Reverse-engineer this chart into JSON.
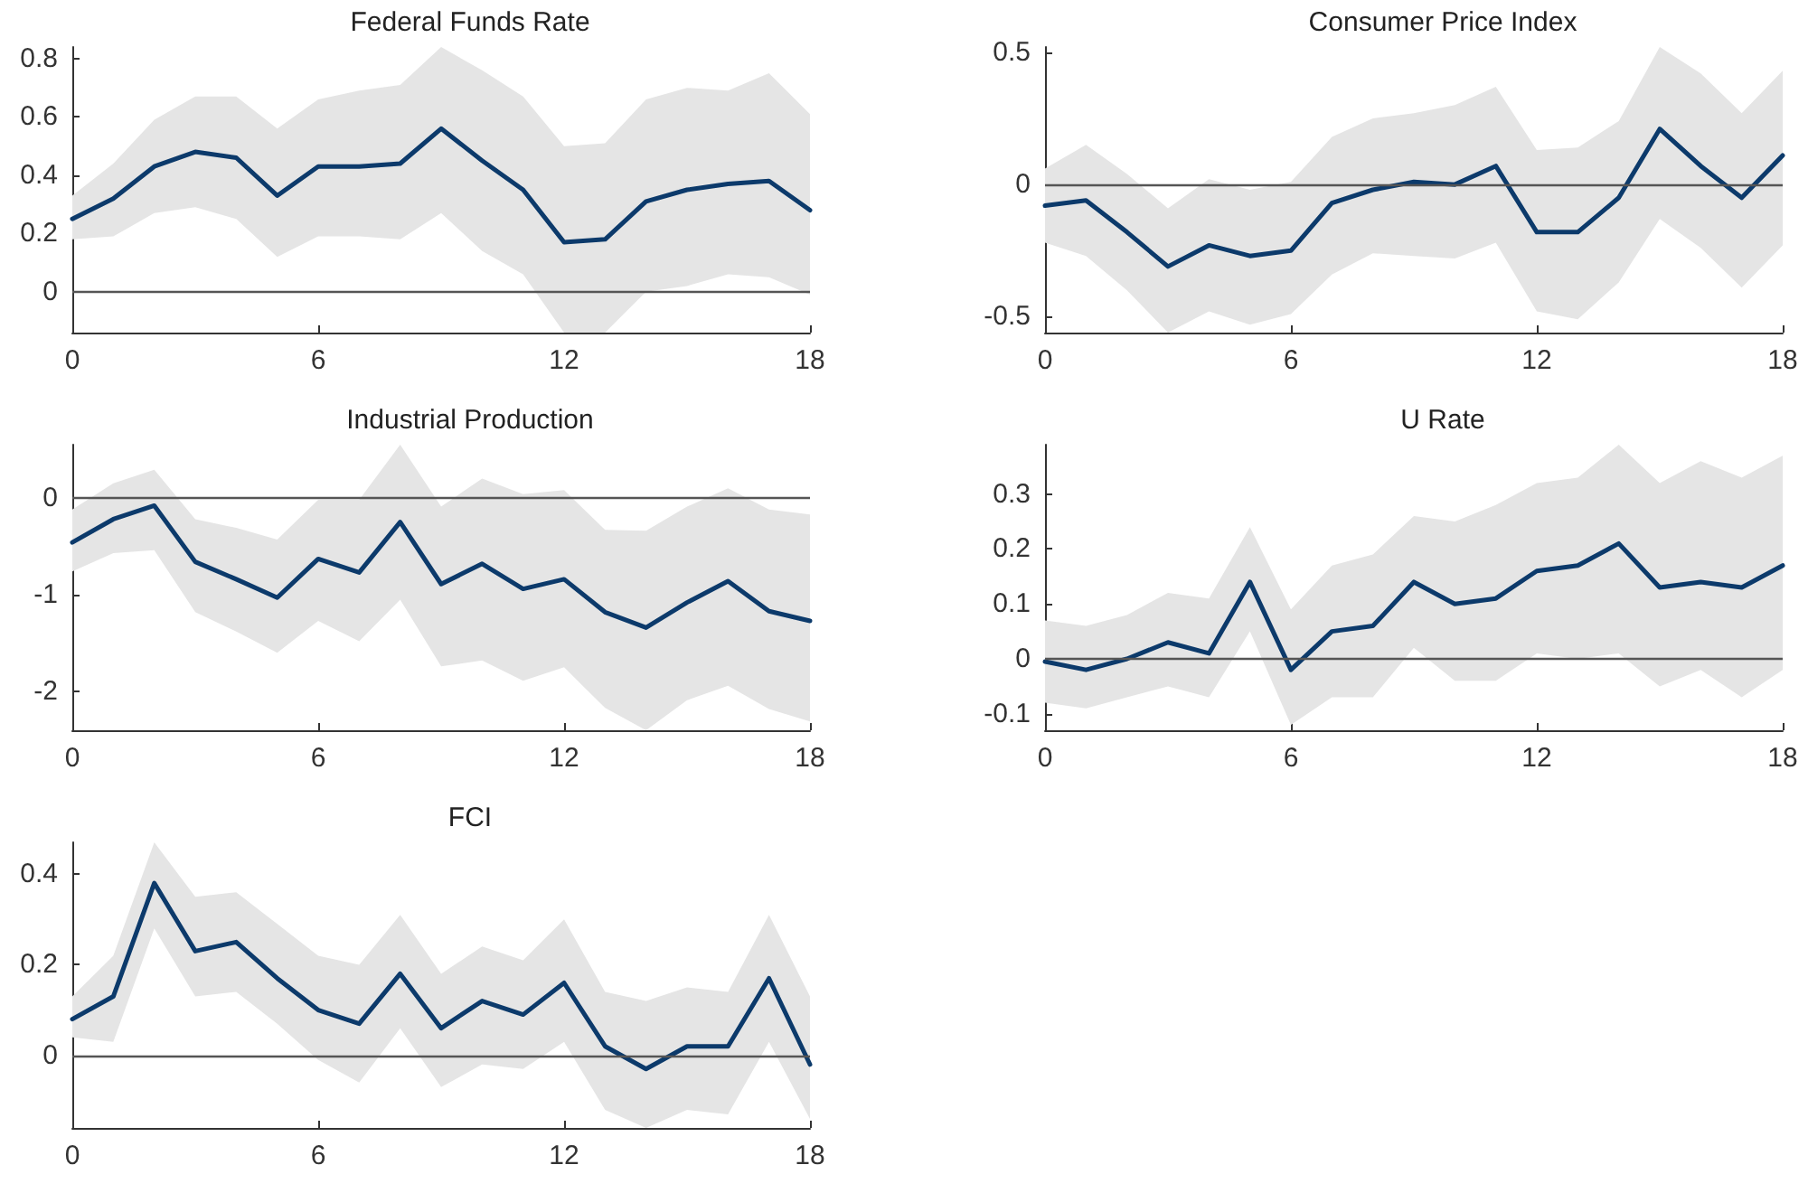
{
  "chart_data": [
    {
      "type": "line",
      "title": "Federal Funds Rate",
      "x": [
        0,
        1,
        2,
        3,
        4,
        5,
        6,
        7,
        8,
        9,
        10,
        11,
        12,
        13,
        14,
        15,
        16,
        17,
        18
      ],
      "xlim": [
        0,
        18
      ],
      "xticks": [
        0,
        6,
        12,
        18
      ],
      "ylim": [
        -0.14,
        0.84
      ],
      "yticks": [
        0,
        0.2,
        0.4,
        0.6,
        0.8
      ],
      "grid": false,
      "marker": "none",
      "line_style": "solid",
      "series": [
        {
          "color": "#0c3a6b",
          "values": [
            0.25,
            0.32,
            0.43,
            0.48,
            0.46,
            0.33,
            0.43,
            0.43,
            0.44,
            0.56,
            0.45,
            0.35,
            0.17,
            0.18,
            0.31,
            0.35,
            0.37,
            0.38,
            0.28
          ],
          "upper": [
            0.33,
            0.44,
            0.59,
            0.67,
            0.67,
            0.56,
            0.66,
            0.69,
            0.71,
            0.84,
            0.76,
            0.67,
            0.5,
            0.51,
            0.66,
            0.7,
            0.69,
            0.75,
            0.61
          ],
          "lower": [
            0.18,
            0.19,
            0.27,
            0.29,
            0.25,
            0.12,
            0.19,
            0.19,
            0.18,
            0.27,
            0.14,
            0.06,
            -0.14,
            -0.14,
            0.0,
            0.02,
            0.06,
            0.05,
            -0.01
          ]
        }
      ],
      "ref_lines": [
        {
          "axis": "y",
          "value": 0,
          "color": "#555555"
        }
      ]
    },
    {
      "type": "line",
      "title": "Consumer Price Index",
      "x": [
        0,
        1,
        2,
        3,
        4,
        5,
        6,
        7,
        8,
        9,
        10,
        11,
        12,
        13,
        14,
        15,
        16,
        17,
        18
      ],
      "xlim": [
        0,
        18
      ],
      "xticks": [
        0,
        6,
        12,
        18
      ],
      "ylim": [
        -0.56,
        0.52
      ],
      "yticks": [
        -0.5,
        0,
        0.5
      ],
      "grid": false,
      "marker": "none",
      "line_style": "solid",
      "series": [
        {
          "color": "#0c3a6b",
          "values": [
            -0.08,
            -0.06,
            -0.18,
            -0.31,
            -0.23,
            -0.27,
            -0.25,
            -0.07,
            -0.02,
            0.01,
            0.0,
            0.07,
            -0.18,
            -0.18,
            -0.05,
            0.21,
            0.07,
            -0.05,
            0.11
          ],
          "upper": [
            0.06,
            0.15,
            0.04,
            -0.09,
            0.02,
            -0.02,
            0.01,
            0.18,
            0.25,
            0.27,
            0.3,
            0.37,
            0.13,
            0.14,
            0.24,
            0.52,
            0.42,
            0.27,
            0.43
          ],
          "lower": [
            -0.22,
            -0.27,
            -0.4,
            -0.56,
            -0.48,
            -0.53,
            -0.49,
            -0.34,
            -0.26,
            -0.27,
            -0.28,
            -0.22,
            -0.48,
            -0.51,
            -0.37,
            -0.13,
            -0.24,
            -0.39,
            -0.23
          ]
        }
      ],
      "ref_lines": [
        {
          "axis": "y",
          "value": 0,
          "color": "#555555"
        }
      ]
    },
    {
      "type": "line",
      "title": "Industrial Production",
      "x": [
        0,
        1,
        2,
        3,
        4,
        5,
        6,
        7,
        8,
        9,
        10,
        11,
        12,
        13,
        14,
        15,
        16,
        17,
        18
      ],
      "xlim": [
        0,
        18
      ],
      "xticks": [
        0,
        6,
        12,
        18
      ],
      "ylim": [
        -2.4,
        0.55
      ],
      "yticks": [
        -2,
        -1,
        0
      ],
      "grid": false,
      "marker": "none",
      "line_style": "solid",
      "series": [
        {
          "color": "#0c3a6b",
          "values": [
            -0.46,
            -0.22,
            -0.08,
            -0.66,
            -0.84,
            -1.03,
            -0.63,
            -0.77,
            -0.25,
            -0.89,
            -0.68,
            -0.94,
            -0.84,
            -1.18,
            -1.34,
            -1.08,
            -0.86,
            -1.17,
            -1.27
          ],
          "upper": [
            -0.12,
            0.15,
            0.29,
            -0.22,
            -0.31,
            -0.43,
            -0.02,
            -0.02,
            0.55,
            -0.09,
            0.2,
            0.04,
            0.08,
            -0.33,
            -0.34,
            -0.09,
            0.1,
            -0.12,
            -0.17
          ],
          "lower": [
            -0.76,
            -0.57,
            -0.54,
            -1.18,
            -1.38,
            -1.6,
            -1.27,
            -1.48,
            -1.05,
            -1.74,
            -1.68,
            -1.89,
            -1.75,
            -2.17,
            -2.4,
            -2.09,
            -1.94,
            -2.18,
            -2.31
          ]
        }
      ],
      "ref_lines": [
        {
          "axis": "y",
          "value": 0,
          "color": "#555555"
        }
      ]
    },
    {
      "type": "line",
      "title": "U Rate",
      "x": [
        0,
        1,
        2,
        3,
        4,
        5,
        6,
        7,
        8,
        9,
        10,
        11,
        12,
        13,
        14,
        15,
        16,
        17,
        18
      ],
      "xlim": [
        0,
        18
      ],
      "xticks": [
        0,
        6,
        12,
        18
      ],
      "ylim": [
        -0.13,
        0.39
      ],
      "yticks": [
        -0.1,
        0,
        0.1,
        0.2,
        0.3
      ],
      "grid": false,
      "marker": "none",
      "line_style": "solid",
      "series": [
        {
          "color": "#0c3a6b",
          "values": [
            -0.005,
            -0.02,
            0.0,
            0.03,
            0.01,
            0.14,
            -0.02,
            0.05,
            0.06,
            0.14,
            0.1,
            0.11,
            0.16,
            0.17,
            0.21,
            0.13,
            0.14,
            0.13,
            0.17
          ],
          "upper": [
            0.07,
            0.06,
            0.08,
            0.12,
            0.11,
            0.24,
            0.09,
            0.17,
            0.19,
            0.26,
            0.25,
            0.28,
            0.32,
            0.33,
            0.39,
            0.32,
            0.36,
            0.33,
            0.37
          ],
          "lower": [
            -0.08,
            -0.09,
            -0.07,
            -0.05,
            -0.07,
            0.05,
            -0.12,
            -0.07,
            -0.07,
            0.02,
            -0.04,
            -0.04,
            0.01,
            0.0,
            0.01,
            -0.05,
            -0.02,
            -0.07,
            -0.02
          ]
        }
      ],
      "ref_lines": [
        {
          "axis": "y",
          "value": 0,
          "color": "#555555"
        }
      ]
    },
    {
      "type": "line",
      "title": "FCI",
      "x": [
        0,
        1,
        2,
        3,
        4,
        5,
        6,
        7,
        8,
        9,
        10,
        11,
        12,
        13,
        14,
        15,
        16,
        17,
        18
      ],
      "xlim": [
        0,
        18
      ],
      "xticks": [
        0,
        6,
        12,
        18
      ],
      "ylim": [
        -0.16,
        0.47
      ],
      "yticks": [
        0,
        0.2,
        0.4
      ],
      "grid": false,
      "marker": "none",
      "line_style": "solid",
      "series": [
        {
          "color": "#0c3a6b",
          "values": [
            0.08,
            0.13,
            0.38,
            0.23,
            0.25,
            0.17,
            0.1,
            0.07,
            0.18,
            0.06,
            0.12,
            0.09,
            0.16,
            0.02,
            -0.03,
            0.02,
            0.02,
            0.17,
            -0.02
          ],
          "upper": [
            0.13,
            0.22,
            0.47,
            0.35,
            0.36,
            0.29,
            0.22,
            0.2,
            0.31,
            0.18,
            0.24,
            0.21,
            0.3,
            0.14,
            0.12,
            0.15,
            0.14,
            0.31,
            0.13
          ],
          "lower": [
            0.04,
            0.03,
            0.28,
            0.13,
            0.14,
            0.07,
            -0.01,
            -0.06,
            0.06,
            -0.07,
            -0.02,
            -0.03,
            0.03,
            -0.12,
            -0.16,
            -0.12,
            -0.13,
            0.03,
            -0.14
          ]
        }
      ],
      "ref_lines": [
        {
          "axis": "y",
          "value": 0,
          "color": "#555555"
        }
      ]
    }
  ]
}
